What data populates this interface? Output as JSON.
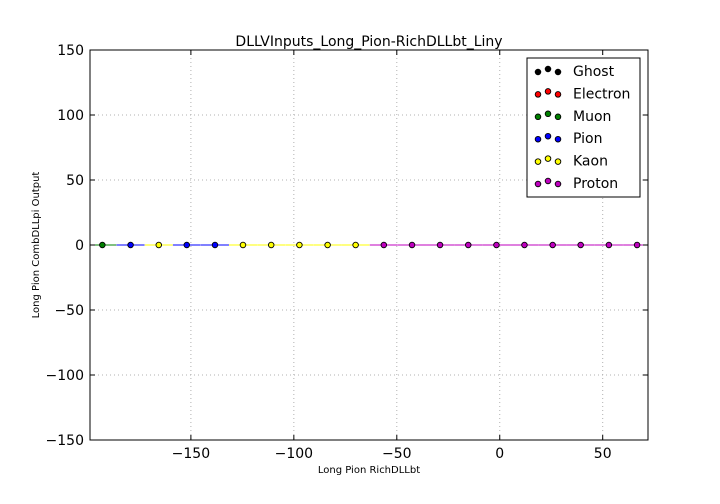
{
  "chart_data": {
    "type": "scatter",
    "title": "DLLVInputs_Long_Pion-RichDLLbt_Liny",
    "xlabel": "Long Pion RichDLLbt",
    "ylabel": "Long Pion CombDLLpi Output",
    "xlim": [
      -199,
      72
    ],
    "ylim": [
      -150,
      150
    ],
    "xticks": [
      -150,
      -100,
      -50,
      0,
      50
    ],
    "xtick_labels": [
      "−150",
      "−100",
      "−50",
      "0",
      "50"
    ],
    "yticks": [
      -150,
      -100,
      -50,
      0,
      50,
      100,
      150
    ],
    "ytick_labels": [
      "−150",
      "−100",
      "−50",
      "0",
      "50",
      "100",
      "150"
    ],
    "grid": true,
    "legend_position": "top-right",
    "x_error_half_width": 6.8,
    "series": [
      {
        "name": "Ghost",
        "color": "#000000",
        "x": [],
        "y": []
      },
      {
        "name": "Electron",
        "color": "#ff0000",
        "x": [],
        "y": []
      },
      {
        "name": "Muon",
        "color": "#008000",
        "x": [
          -193
        ],
        "y": [
          0
        ]
      },
      {
        "name": "Pion",
        "color": "#0000ff",
        "x": [
          -179.3,
          -152,
          -138.3
        ],
        "y": [
          0,
          0,
          0
        ]
      },
      {
        "name": "Kaon",
        "color": "#ffff00",
        "x": [
          -165.6,
          -124.7,
          -111,
          -97.3,
          -83.6,
          -70
        ],
        "y": [
          0,
          0,
          0,
          0,
          0,
          0
        ]
      },
      {
        "name": "Proton",
        "color": "#bf00bf",
        "x": [
          -56.3,
          -42.6,
          -29,
          -15.3,
          -1.6,
          12,
          25.7,
          39.3,
          53,
          66.7
        ],
        "y": [
          0,
          0,
          0,
          0,
          0,
          0,
          0,
          0,
          0,
          0
        ]
      }
    ]
  }
}
